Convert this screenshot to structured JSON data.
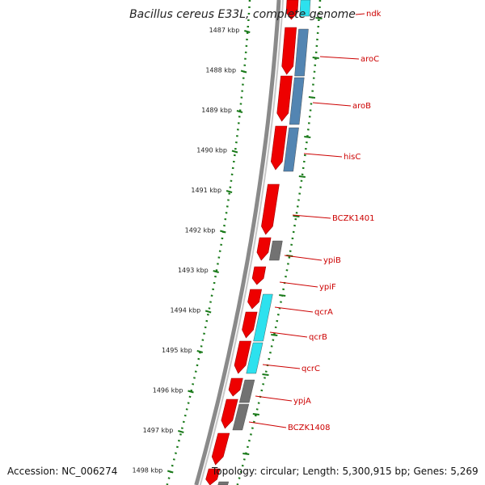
{
  "title": "Bacillus cereus E33L, complete genome",
  "footer": {
    "accession": "Accession: NC_006274",
    "summary": "Topology: circular; Length: 5,300,915 bp; Genes: 5,269"
  },
  "ticks": [
    "1487 kbp",
    "1488 kbp",
    "1489 kbp",
    "1490 kbp",
    "1491 kbp",
    "1492 kbp",
    "1493 kbp",
    "1494 kbp",
    "1495 kbp",
    "1496 kbp",
    "1497 kbp",
    "1498 kbp"
  ],
  "genes": [
    {
      "name": "ndk",
      "kind": "cyan"
    },
    {
      "name": "aroC",
      "kind": "steelblue"
    },
    {
      "name": "aroB",
      "kind": "steelblue"
    },
    {
      "name": "hisC",
      "kind": "steelblue"
    },
    {
      "name": "BCZK1401",
      "kind": "none"
    },
    {
      "name": "ypiB",
      "kind": "gray"
    },
    {
      "name": "ypiF",
      "kind": "none"
    },
    {
      "name": "qcrA",
      "kind": "cyan"
    },
    {
      "name": "qcrB",
      "kind": "cyan"
    },
    {
      "name": "qcrC",
      "kind": "cyan"
    },
    {
      "name": "ypjA",
      "kind": "gray"
    },
    {
      "name": "BCZK1408",
      "kind": "gray"
    }
  ],
  "colors": {
    "cds": "#ee0000",
    "cyan": "#22e0ee",
    "steelblue": "#4a7fae",
    "gray": "#6b6b6b",
    "backbone": "#8a8a8a",
    "ticks": "#1a7a1a",
    "label": "#cc0000"
  }
}
